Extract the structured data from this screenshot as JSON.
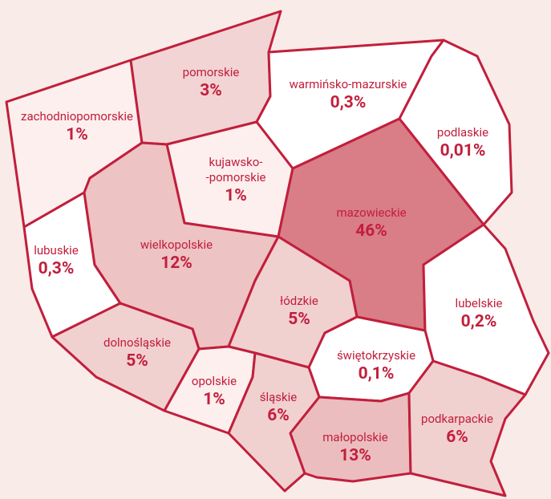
{
  "regions": [
    {
      "name": "zachodniopomorskie",
      "value": 1,
      "value_label": "1%",
      "color": "#fcefee"
    },
    {
      "name": "pomorskie",
      "value": 3,
      "value_label": "3%",
      "color": "#f2d4d4"
    },
    {
      "name": "warmińsko-mazurskie",
      "value": 0.3,
      "value_label": "0,3%",
      "color": "#ffffff"
    },
    {
      "name": "podlaskie",
      "value": 0.01,
      "value_label": "0,01%",
      "color": "#ffffff"
    },
    {
      "name": "kujawsko-\n-pomorskie",
      "value": 1,
      "value_label": "1%",
      "color": "#fcefee"
    },
    {
      "name": "mazowieckie",
      "value": 46,
      "value_label": "46%",
      "color": "#d97d87"
    },
    {
      "name": "lubuskie",
      "value": 0.3,
      "value_label": "0,3%",
      "color": "#ffffff"
    },
    {
      "name": "wielkopolskie",
      "value": 12,
      "value_label": "12%",
      "color": "#edc3c4"
    },
    {
      "name": "łódzkie",
      "value": 5,
      "value_label": "5%",
      "color": "#f1d0d0"
    },
    {
      "name": "lubelskie",
      "value": 0.2,
      "value_label": "0,2%",
      "color": "#ffffff"
    },
    {
      "name": "dolnośląskie",
      "value": 5,
      "value_label": "5%",
      "color": "#f1d0d0"
    },
    {
      "name": "świętokrzyskie",
      "value": 0.1,
      "value_label": "0,1%",
      "color": "#ffffff"
    },
    {
      "name": "opolskie",
      "value": 1,
      "value_label": "1%",
      "color": "#fcefee"
    },
    {
      "name": "śląskie",
      "value": 6,
      "value_label": "6%",
      "color": "#f1d0d0"
    },
    {
      "name": "małopolskie",
      "value": 13,
      "value_label": "13%",
      "color": "#ebbdbf"
    },
    {
      "name": "podkarpackie",
      "value": 6,
      "value_label": "6%",
      "color": "#f1d0d0"
    }
  ]
}
